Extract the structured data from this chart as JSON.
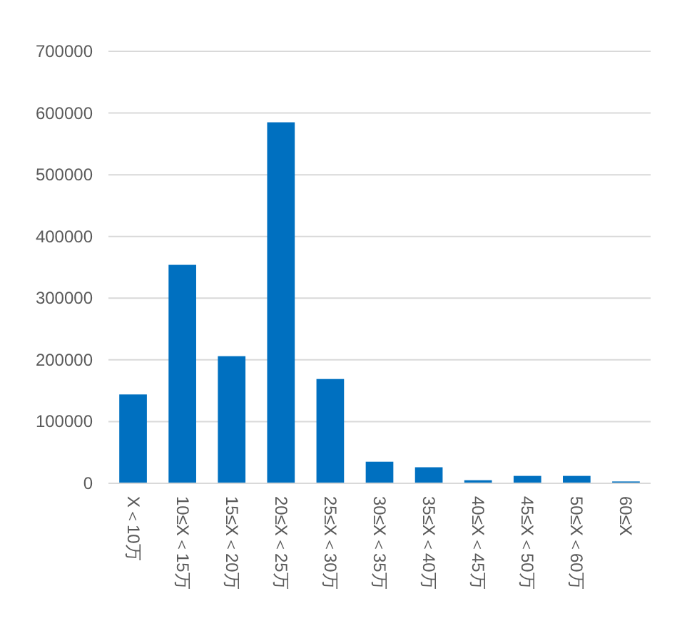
{
  "chart_data": {
    "type": "bar",
    "categories": [
      "X＜10万",
      "10≤X＜15万",
      "15≤X＜20万",
      "20≤X＜25万",
      "25≤X＜30万",
      "30≤X＜35万",
      "35≤X＜40万",
      "40≤X＜45万",
      "45≤X＜50万",
      "50≤X＜60万",
      "60≤X"
    ],
    "values": [
      144000,
      354000,
      206000,
      585000,
      169000,
      35000,
      26000,
      5000,
      12000,
      12000,
      3000
    ],
    "color": "#0070c0",
    "ylim": [
      0,
      700000
    ],
    "yticks": [
      0,
      100000,
      200000,
      300000,
      400000,
      500000,
      600000,
      700000
    ],
    "grid": "y"
  }
}
